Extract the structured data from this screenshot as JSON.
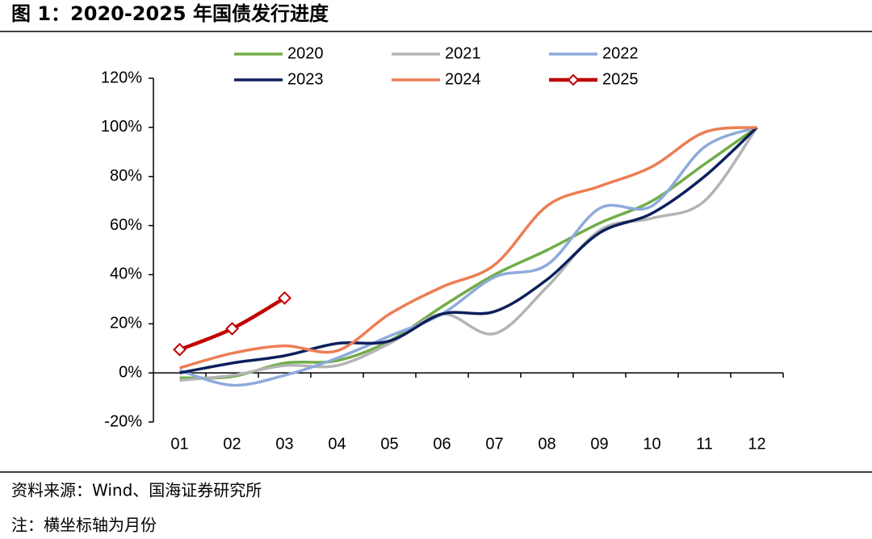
{
  "chart_data": {
    "type": "line",
    "title": "图 1：2020-2025 年国债发行进度",
    "source": "资料来源：Wind、国海证券研究所",
    "note": "注：横坐标轴为月份",
    "categories": [
      "01",
      "02",
      "03",
      "04",
      "05",
      "06",
      "07",
      "08",
      "09",
      "10",
      "11",
      "12"
    ],
    "series": [
      {
        "name": "2020",
        "color": "#70ad47",
        "values": [
          -2,
          -1.5,
          4,
          5,
          13,
          27,
          40,
          50,
          61,
          70,
          85,
          100
        ]
      },
      {
        "name": "2021",
        "color": "#b4b4b4",
        "values": [
          -3,
          -1,
          3,
          3,
          12,
          24,
          16,
          35,
          58,
          63,
          70,
          100
        ]
      },
      {
        "name": "2022",
        "color": "#8eaadb",
        "values": [
          1,
          -5,
          -1,
          6,
          15,
          24,
          39,
          44,
          67,
          68,
          92,
          100
        ]
      },
      {
        "name": "2023",
        "color": "#0d1f5c",
        "values": [
          0,
          4,
          7,
          12,
          13,
          24,
          25,
          38,
          57,
          65,
          80,
          100
        ]
      },
      {
        "name": "2024",
        "color": "#ed7d54",
        "values": [
          2,
          8,
          11,
          9,
          24,
          35,
          44,
          68,
          76,
          84,
          98,
          100
        ]
      },
      {
        "name": "2025",
        "color": "#c00000",
        "marker": "diamond",
        "values": [
          9.5,
          18,
          30.5,
          null,
          null,
          null,
          null,
          null,
          null,
          null,
          null,
          null
        ]
      }
    ],
    "ylim": [
      -20,
      120
    ],
    "yticks": [
      {
        "value": -20,
        "label": "-20%"
      },
      {
        "value": 0,
        "label": "0%"
      },
      {
        "value": 20,
        "label": "20%"
      },
      {
        "value": 40,
        "label": "40%"
      },
      {
        "value": 60,
        "label": "60%"
      },
      {
        "value": 80,
        "label": "80%"
      },
      {
        "value": 100,
        "label": "100%"
      },
      {
        "value": 120,
        "label": "120%"
      }
    ],
    "legend": "top",
    "grid": false
  }
}
